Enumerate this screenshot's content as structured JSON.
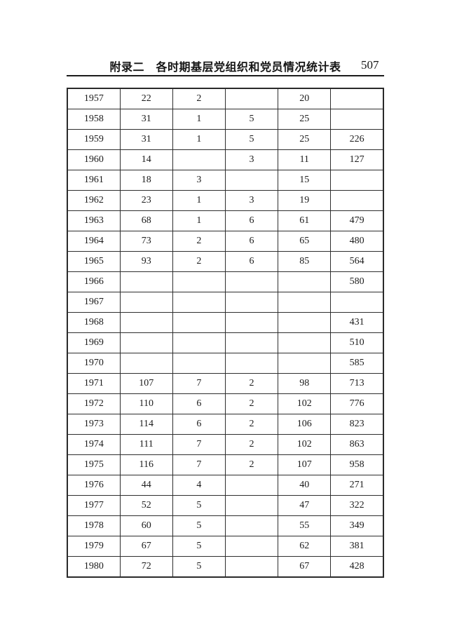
{
  "header": {
    "title": "附录二　各时期基层党组织和党员情况统计表",
    "page_number": "507"
  },
  "table": {
    "columns_visible": 6,
    "note_no_header_row_visible": true,
    "rows": [
      [
        "1957",
        "22",
        "2",
        "",
        "20",
        ""
      ],
      [
        "1958",
        "31",
        "1",
        "5",
        "25",
        ""
      ],
      [
        "1959",
        "31",
        "1",
        "5",
        "25",
        "226"
      ],
      [
        "1960",
        "14",
        "",
        "3",
        "11",
        "127"
      ],
      [
        "1961",
        "18",
        "3",
        "",
        "15",
        ""
      ],
      [
        "1962",
        "23",
        "1",
        "3",
        "19",
        ""
      ],
      [
        "1963",
        "68",
        "1",
        "6",
        "61",
        "479"
      ],
      [
        "1964",
        "73",
        "2",
        "6",
        "65",
        "480"
      ],
      [
        "1965",
        "93",
        "2",
        "6",
        "85",
        "564"
      ],
      [
        "1966",
        "",
        "",
        "",
        "",
        "580"
      ],
      [
        "1967",
        "",
        "",
        "",
        "",
        ""
      ],
      [
        "1968",
        "",
        "",
        "",
        "",
        "431"
      ],
      [
        "1969",
        "",
        "",
        "",
        "",
        "510"
      ],
      [
        "1970",
        "",
        "",
        "",
        "",
        "585"
      ],
      [
        "1971",
        "107",
        "7",
        "2",
        "98",
        "713"
      ],
      [
        "1972",
        "110",
        "6",
        "2",
        "102",
        "776"
      ],
      [
        "1973",
        "114",
        "6",
        "2",
        "106",
        "823"
      ],
      [
        "1974",
        "111",
        "7",
        "2",
        "102",
        "863"
      ],
      [
        "1975",
        "116",
        "7",
        "2",
        "107",
        "958"
      ],
      [
        "1976",
        "44",
        "4",
        "",
        "40",
        "271"
      ],
      [
        "1977",
        "52",
        "5",
        "",
        "47",
        "322"
      ],
      [
        "1978",
        "60",
        "5",
        "",
        "55",
        "349"
      ],
      [
        "1979",
        "67",
        "5",
        "",
        "62",
        "381"
      ],
      [
        "1980",
        "72",
        "5",
        "",
        "67",
        "428"
      ]
    ]
  },
  "colors": {
    "page_background": "#ffffff",
    "border": "#2a2a2a",
    "text": "#1c1c1c"
  }
}
